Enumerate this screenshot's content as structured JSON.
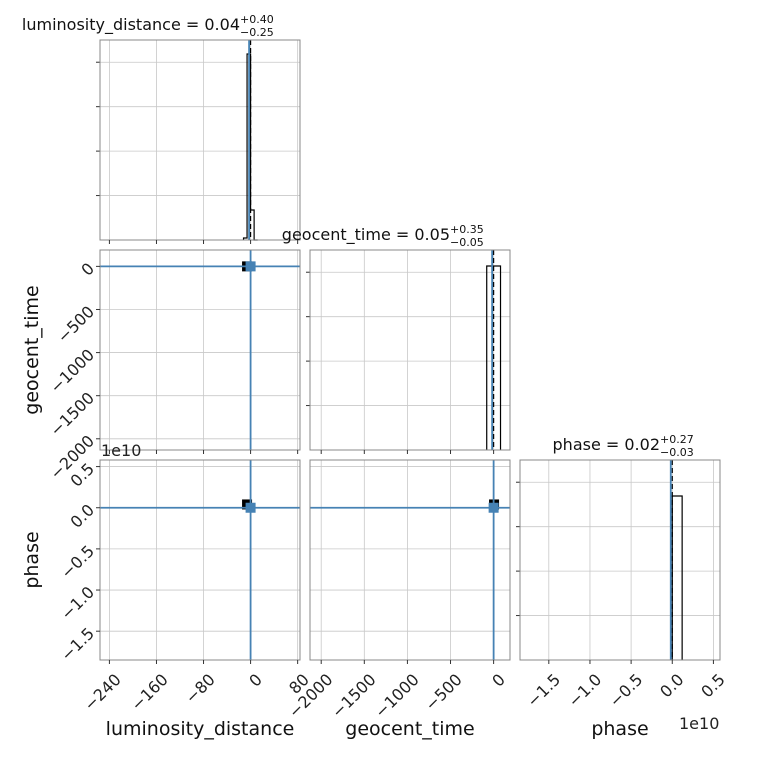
{
  "chart_data": {
    "type": "corner",
    "parameters": [
      "luminosity_distance",
      "geocent_time",
      "phase"
    ],
    "titles": [
      {
        "param": "luminosity_distance",
        "text": "luminosity_distance = 0.04",
        "plus": "+0.40",
        "minus": "−0.25"
      },
      {
        "param": "geocent_time",
        "text": "geocent_time = 0.05",
        "plus": "+0.35",
        "minus": "−0.05"
      },
      {
        "param": "phase",
        "text": "phase = 0.02",
        "plus": "+0.27",
        "minus": "−0.03"
      }
    ],
    "axis_labels": {
      "x": [
        "luminosity_distance",
        "geocent_time",
        "phase"
      ],
      "y": [
        "geocent_time",
        "phase"
      ]
    },
    "truths": {
      "luminosity_distance": 0,
      "geocent_time": 0,
      "phase": 0
    },
    "ranges": {
      "luminosity_distance": [
        -256,
        84
      ],
      "geocent_time": [
        -2130,
        190
      ],
      "phase": [
        -18500000000.0,
        5800000000.0
      ]
    },
    "ticks": {
      "luminosity_distance": {
        "values": [
          -240,
          -160,
          -80,
          0,
          80
        ],
        "labels": [
          "−240",
          "−160",
          "−80",
          "0",
          "80"
        ]
      },
      "geocent_time": {
        "values": [
          -2000,
          -1500,
          -1000,
          -500,
          0
        ],
        "labels": [
          "−2000",
          "−1500",
          "−1000",
          "−500",
          "0"
        ]
      },
      "phase": {
        "values": [
          -15000000000.0,
          -10000000000.0,
          -5000000000.0,
          0,
          5000000000.0
        ],
        "labels": [
          "−1.5",
          "−1.0",
          "−0.5",
          "0.0",
          "0.5"
        ]
      }
    },
    "offset_text": "1e10",
    "histograms": {
      "luminosity_distance": {
        "edges": [
          -12,
          -6,
          0,
          6,
          12
        ],
        "heights": [
          0.01,
          0.93,
          0.15,
          0
        ]
      },
      "geocent_time": {
        "edges": [
          -80,
          0,
          80
        ],
        "heights": [
          0.92,
          0.92
        ]
      },
      "phase": {
        "edges": [
          0,
          1200000000.0
        ],
        "heights": [
          0.82
        ]
      }
    },
    "samples": [
      {
        "row": 1,
        "col": 0,
        "x": -6,
        "y": 0
      },
      {
        "row": 2,
        "col": 0,
        "x": -6,
        "y": 400000000.0
      },
      {
        "row": 2,
        "col": 1,
        "x": 5,
        "y": 400000000.0
      }
    ],
    "grid": true
  }
}
